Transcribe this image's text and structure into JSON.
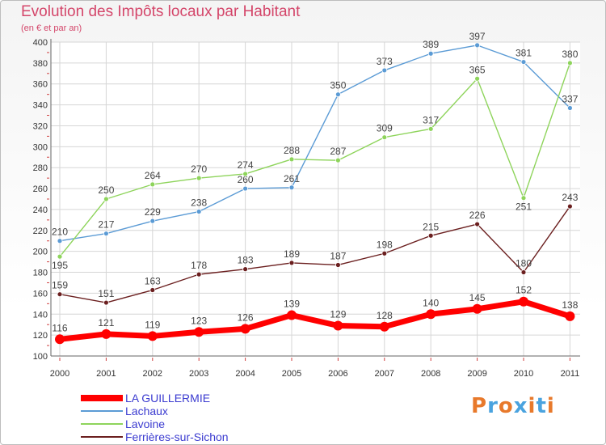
{
  "title": "Evolution des Impôts locaux par Habitant",
  "subtitle": "(en € et par an)",
  "logo": {
    "text": "Proxiti",
    "colors": [
      "#e8792b",
      "#4aa3df",
      "#e8792b",
      "#4aa3df",
      "#e8792b",
      "#4aa3df",
      "#e8792b"
    ]
  },
  "chart_data": {
    "type": "line",
    "x": [
      "2000",
      "2001",
      "2002",
      "2003",
      "2004",
      "2005",
      "2006",
      "2007",
      "2008",
      "2009",
      "2010",
      "2011"
    ],
    "yticks": [
      "100",
      "120",
      "140",
      "160",
      "180",
      "200",
      "220",
      "240",
      "260",
      "280",
      "300",
      "320",
      "340",
      "360",
      "380",
      "400"
    ],
    "ylim": [
      100,
      400
    ],
    "grid": true,
    "legend_position": "bottom-left",
    "series": [
      {
        "name": "LA GUILLERMIE",
        "color": "#ff0000",
        "values": [
          116,
          121,
          119,
          123,
          126,
          139,
          129,
          128,
          140,
          145,
          152,
          138
        ]
      },
      {
        "name": "Lachaux",
        "color": "#5b9bd5",
        "values": [
          210,
          217,
          229,
          238,
          260,
          261,
          350,
          373,
          389,
          397,
          381,
          337
        ]
      },
      {
        "name": "Lavoine",
        "color": "#8ed45b",
        "values": [
          195,
          250,
          264,
          270,
          274,
          288,
          287,
          309,
          317,
          365,
          251,
          380
        ]
      },
      {
        "name": "Ferrières-sur-Sichon",
        "color": "#6b1f1f",
        "values": [
          159,
          151,
          163,
          178,
          183,
          189,
          187,
          198,
          215,
          226,
          180,
          243
        ]
      }
    ]
  }
}
